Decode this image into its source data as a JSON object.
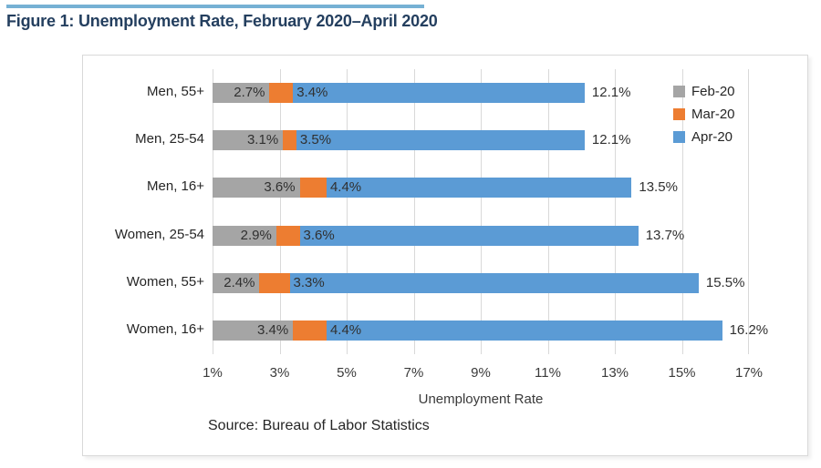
{
  "page": {
    "figure_title": "Figure 1: Unemployment Rate, February 2020–April 2020",
    "accent_line_color": "#76b1d4",
    "title_color": "#243f5f"
  },
  "chart_data": {
    "type": "bar",
    "orientation": "horizontal",
    "title": "Figure 1: Unemployment Rate, February 2020–April 2020",
    "categories": [
      "Men, 55+",
      "Men, 25-54",
      "Men, 16+",
      "Women, 25-54",
      "Women, 55+",
      "Women, 16+"
    ],
    "series": [
      {
        "name": "Feb-20",
        "color": "#a5a5a5",
        "values": [
          2.7,
          3.1,
          3.6,
          2.9,
          2.4,
          3.4
        ]
      },
      {
        "name": "Mar-20",
        "color": "#ed7d31",
        "values": [
          3.4,
          3.5,
          4.4,
          3.6,
          3.3,
          4.4
        ]
      },
      {
        "name": "Apr-20",
        "color": "#5b9bd5",
        "values": [
          12.1,
          12.1,
          13.5,
          13.7,
          15.5,
          16.2
        ]
      }
    ],
    "value_suffix": "%",
    "xlabel": "Unemployment Rate",
    "ylabel": "",
    "x_ticks": [
      "1%",
      "3%",
      "5%",
      "7%",
      "9%",
      "11%",
      "13%",
      "15%",
      "17%"
    ],
    "xlim": [
      1,
      17
    ],
    "grid": true,
    "gridline_color": "#d9d9d9",
    "legend_position": "top-right",
    "legend_entries": [
      "Feb-20",
      "Mar-20",
      "Apr-20"
    ],
    "source_note": "Source: Bureau of Labor Statistics"
  }
}
